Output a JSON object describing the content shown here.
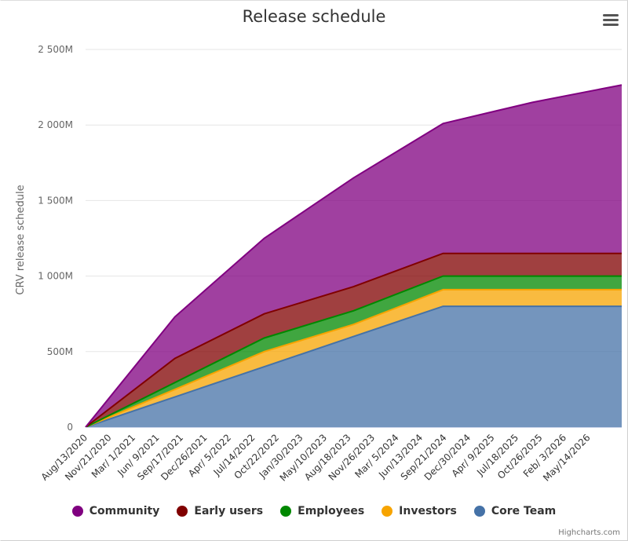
{
  "title": "Release schedule",
  "menu_icon": "hamburger-menu-icon",
  "credits": "Highcharts.com",
  "chart_data": {
    "type": "area",
    "stacked": true,
    "title": "Release schedule",
    "ylabel": "CRV release schedule",
    "xlabel": "",
    "ylim": [
      0,
      2500
    ],
    "y_unit": "M",
    "y_ticks": [
      0,
      500,
      1000,
      1500,
      2000,
      2500
    ],
    "y_tick_labels": [
      "0",
      "500M",
      "1 000M",
      "1 500M",
      "2 000M",
      "2 500M"
    ],
    "x_tick_labels": [
      "Aug/13/2020",
      "Nov/21/2020",
      "Mar/ 1/2021",
      "Jun/ 9/2021",
      "Sep/17/2021",
      "Dec/26/2021",
      "Apr/ 5/2022",
      "Jul/14/2022",
      "Oct/22/2022",
      "Jan/30/2023",
      "May/10/2023",
      "Aug/18/2023",
      "Nov/26/2023",
      "Mar/ 5/2024",
      "Jun/13/2024",
      "Sep/21/2024",
      "Dec/30/2024",
      "Apr/ 9/2025",
      "Jul/18/2025",
      "Oct/26/2025",
      "Feb/ 3/2026",
      "May/14/2026"
    ],
    "x_points": [
      "Aug/13/2020",
      "Aug/13/2021",
      "Aug/13/2022",
      "Aug/13/2023",
      "Aug/13/2024",
      "Aug/13/2025",
      "Aug/13/2026"
    ],
    "grid": true,
    "legend_position": "bottom-center",
    "series": [
      {
        "name": "Core Team",
        "color": "#4572A7",
        "values": [
          0,
          200,
          400,
          600,
          800,
          800,
          800
        ]
      },
      {
        "name": "Investors",
        "color": "#F7A400",
        "values": [
          0,
          50,
          100,
          80,
          110,
          110,
          110
        ]
      },
      {
        "name": "Employees",
        "color": "#008800",
        "values": [
          0,
          45,
          90,
          90,
          90,
          90,
          90
        ]
      },
      {
        "name": "Early users",
        "color": "#800000",
        "values": [
          0,
          160,
          160,
          160,
          150,
          150,
          150
        ]
      },
      {
        "name": "Community",
        "color": "#800080",
        "values": [
          0,
          275,
          500,
          720,
          860,
          1000,
          1115
        ]
      }
    ],
    "legend_order": [
      "Community",
      "Early users",
      "Employees",
      "Investors",
      "Core Team"
    ]
  }
}
